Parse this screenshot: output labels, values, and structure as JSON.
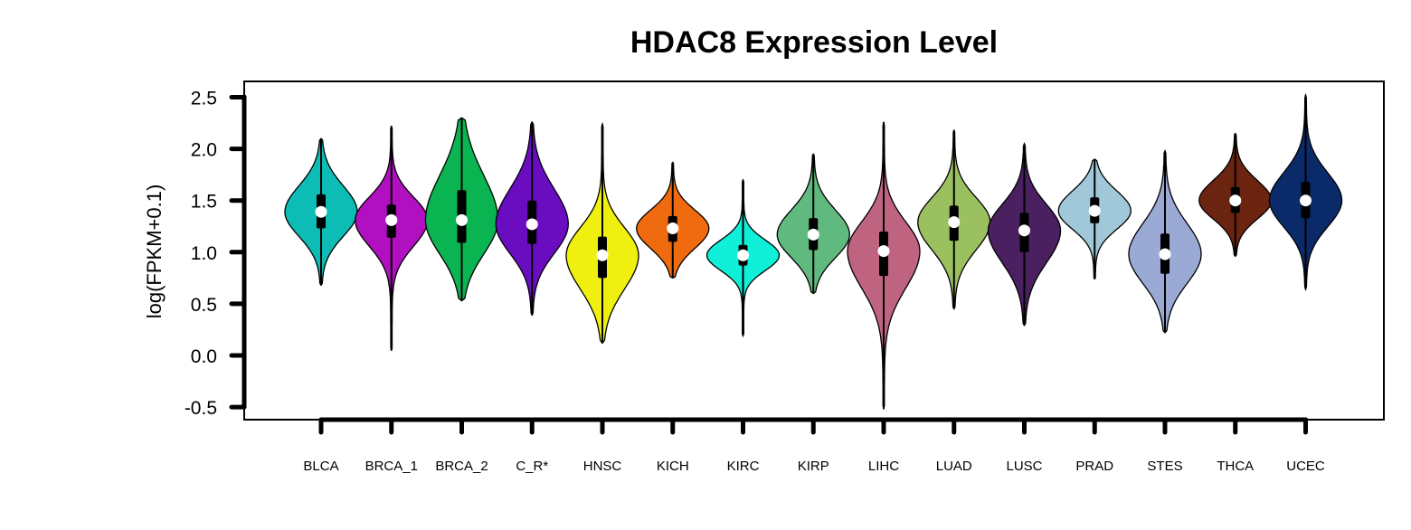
{
  "chart_data": {
    "type": "violin",
    "title": "HDAC8 Expression Level",
    "xlabel": "",
    "ylabel": "log(FPKM+0.1)",
    "ylim": [
      -0.5,
      2.5
    ],
    "yticks": [
      "-0.5",
      "0.0",
      "0.5",
      "1.0",
      "1.5",
      "2.0",
      "2.5"
    ],
    "grid": false,
    "categories": [
      "BLCA",
      "BRCA_1",
      "BRCA_2",
      "C_R*",
      "HNSC",
      "KICH",
      "KIRC",
      "KIRP",
      "LIHC",
      "LUAD",
      "LUSC",
      "PRAD",
      "STES",
      "THCA",
      "UCEC"
    ],
    "colors": [
      "#0dbcb4",
      "#b010c0",
      "#0ab450",
      "#6a0dc0",
      "#f0f010",
      "#f06a10",
      "#10f0d8",
      "#60ba80",
      "#be6480",
      "#9ac060",
      "#4a2060",
      "#a0c8d8",
      "#9aaad4",
      "#6a2410",
      "#0a2a6a"
    ],
    "series": [
      {
        "min": 0.68,
        "q1": 1.23,
        "median": 1.39,
        "q3": 1.56,
        "max": 2.1
      },
      {
        "min": 0.05,
        "q1": 1.14,
        "median": 1.31,
        "q3": 1.46,
        "max": 2.22
      },
      {
        "min": 0.53,
        "q1": 1.09,
        "median": 1.31,
        "q3": 1.6,
        "max": 2.3
      },
      {
        "min": 0.39,
        "q1": 1.08,
        "median": 1.27,
        "q3": 1.5,
        "max": 2.26
      },
      {
        "min": 0.12,
        "q1": 0.75,
        "median": 0.97,
        "q3": 1.15,
        "max": 2.24
      },
      {
        "min": 0.75,
        "q1": 1.1,
        "median": 1.23,
        "q3": 1.35,
        "max": 1.87
      },
      {
        "min": 0.19,
        "q1": 0.87,
        "median": 0.97,
        "q3": 1.07,
        "max": 1.7
      },
      {
        "min": 0.6,
        "q1": 1.02,
        "median": 1.17,
        "q3": 1.33,
        "max": 1.95
      },
      {
        "min": -0.52,
        "q1": 0.77,
        "median": 1.01,
        "q3": 1.2,
        "max": 2.26
      },
      {
        "min": 0.45,
        "q1": 1.11,
        "median": 1.29,
        "q3": 1.45,
        "max": 2.18
      },
      {
        "min": 0.29,
        "q1": 1.0,
        "median": 1.21,
        "q3": 1.38,
        "max": 2.05
      },
      {
        "min": 0.74,
        "q1": 1.28,
        "median": 1.4,
        "q3": 1.53,
        "max": 1.9
      },
      {
        "min": 0.22,
        "q1": 0.79,
        "median": 0.98,
        "q3": 1.18,
        "max": 1.98
      },
      {
        "min": 0.96,
        "q1": 1.38,
        "median": 1.5,
        "q3": 1.63,
        "max": 2.15
      },
      {
        "min": 0.64,
        "q1": 1.33,
        "median": 1.5,
        "q3": 1.68,
        "max": 2.52
      }
    ]
  }
}
